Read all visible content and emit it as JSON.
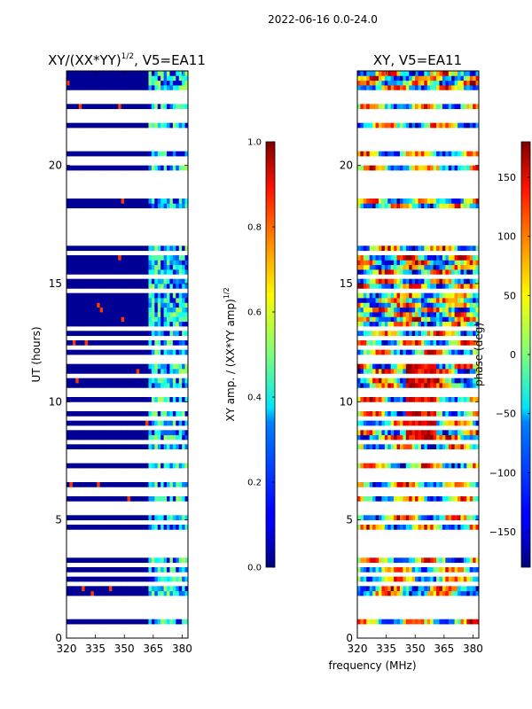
{
  "figure": {
    "suptitle": "2022-06-16 0.0-24.0",
    "xlabel_shared": "frequency (MHz)"
  },
  "chart_data": [
    {
      "type": "heatmap",
      "title": "XY/(XX*YY)",
      "title_sup": "1/2",
      "title_suffix": ", V5=EA11",
      "ylabel": "UT (hours)",
      "xlim": [
        320,
        383
      ],
      "ylim": [
        0,
        24
      ],
      "xticks": [
        320,
        335,
        350,
        365,
        380
      ],
      "yticks": [
        0,
        5,
        10,
        15,
        20
      ],
      "colormap": "jet",
      "colorbar": {
        "label": "XY amp. / (XX*YY amp)",
        "label_sup": "1/2",
        "range": [
          0.0,
          1.0
        ],
        "ticks": [
          0.0,
          0.2,
          0.4,
          0.6,
          0.8,
          1.0
        ],
        "tick_labels": [
          "0.0",
          "0.2",
          "0.4",
          "0.6",
          "0.8",
          "1.0"
        ]
      },
      "description_ranges": {
        "low_band_MHz": [
          320,
          360
        ],
        "low_band_value": 0.02,
        "high_band_MHz": [
          360,
          383
        ],
        "high_band_value_range": [
          0.2,
          0.55
        ]
      }
    },
    {
      "type": "heatmap",
      "title": "XY, V5=EA11",
      "xlim": [
        320,
        383
      ],
      "ylim": [
        0,
        24
      ],
      "xticks": [
        320,
        335,
        350,
        365,
        380
      ],
      "yticks": [
        0,
        5,
        10,
        15,
        20
      ],
      "colormap": "jet",
      "colorbar": {
        "label": "phase (deg)",
        "range": [
          -180,
          180
        ],
        "ticks": [
          -150,
          -100,
          -50,
          0,
          50,
          100,
          150
        ],
        "tick_labels": [
          "−150",
          "−100",
          "−50",
          "0",
          "50",
          "100",
          "150"
        ]
      },
      "description_ranges": {
        "phase_range_deg": [
          -180,
          180
        ]
      }
    }
  ],
  "ut_hours_blank_rows": [
    0.4,
    1.0,
    1.3,
    1.6,
    2.3,
    2.7,
    3.1,
    3.6,
    4.0,
    4.4,
    4.9,
    5.4,
    5.6,
    6.2,
    6.8,
    7.1,
    7.5,
    7.8,
    8.3,
    8.9,
    9.3,
    9.8,
    10.4,
    11.1,
    11.8,
    12.3,
    12.7,
    13.1,
    14.7,
    15.3,
    16.3,
    16.8,
    17.2,
    17.6,
    18.0,
    18.7,
    19.0,
    19.3,
    19.6,
    20.2,
    20.8,
    21.2,
    21.5,
    22.0,
    22.3,
    22.8,
    23.1
  ]
}
